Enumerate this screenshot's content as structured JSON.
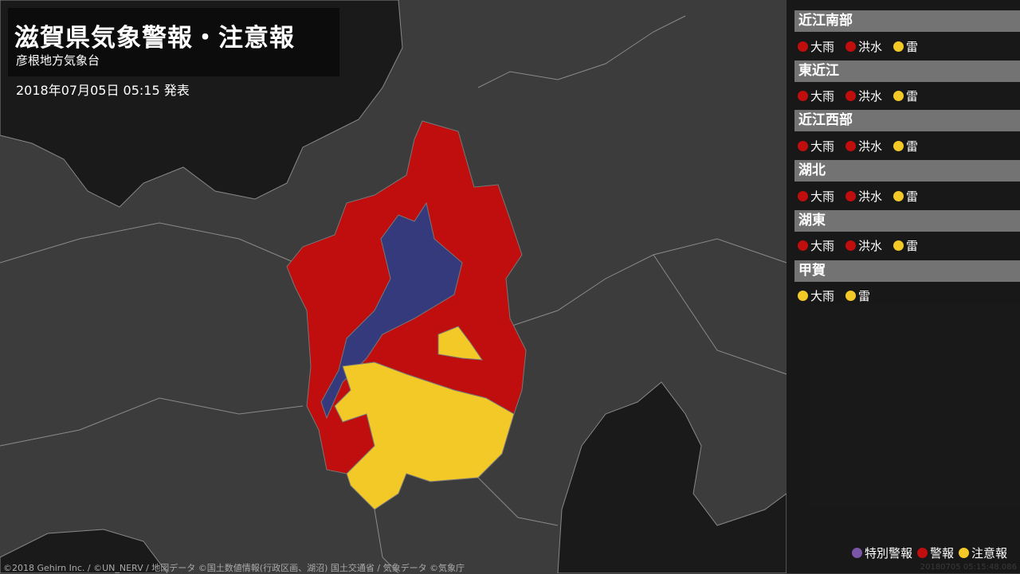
{
  "header": {
    "title": "滋賀県気象警報・注意報",
    "office": "彦根地方気象台",
    "issued": "2018年07月05日 05:15 発表"
  },
  "colors": {
    "special_warning": "#7b55a8",
    "warning": "#c00d0d",
    "advisory": "#f3c928",
    "lake": "#353a7c",
    "land": "#3c3c3c",
    "sea": "#1a1a1a"
  },
  "areas": [
    {
      "name": "近江南部",
      "items": [
        {
          "label": "大雨",
          "level": "warning"
        },
        {
          "label": "洪水",
          "level": "warning"
        },
        {
          "label": "雷",
          "level": "advisory"
        }
      ]
    },
    {
      "name": "東近江",
      "items": [
        {
          "label": "大雨",
          "level": "warning"
        },
        {
          "label": "洪水",
          "level": "warning"
        },
        {
          "label": "雷",
          "level": "advisory"
        }
      ]
    },
    {
      "name": "近江西部",
      "items": [
        {
          "label": "大雨",
          "level": "warning"
        },
        {
          "label": "洪水",
          "level": "warning"
        },
        {
          "label": "雷",
          "level": "advisory"
        }
      ]
    },
    {
      "name": "湖北",
      "items": [
        {
          "label": "大雨",
          "level": "warning"
        },
        {
          "label": "洪水",
          "level": "warning"
        },
        {
          "label": "雷",
          "level": "advisory"
        }
      ]
    },
    {
      "name": "湖東",
      "items": [
        {
          "label": "大雨",
          "level": "warning"
        },
        {
          "label": "洪水",
          "level": "warning"
        },
        {
          "label": "雷",
          "level": "advisory"
        }
      ]
    },
    {
      "name": "甲賀",
      "items": [
        {
          "label": "大雨",
          "level": "advisory"
        },
        {
          "label": "雷",
          "level": "advisory"
        }
      ]
    }
  ],
  "legend": [
    {
      "label": "特別警報",
      "level": "special_warning"
    },
    {
      "label": "警報",
      "level": "warning"
    },
    {
      "label": "注意報",
      "level": "advisory"
    }
  ],
  "credit": "©2018 Gehirn Inc. / ©UN_NERV / 地図データ ©国土数値情報(行政区画、湖沼) 国土交通省 / 気象データ ©気象庁",
  "stamp": "20180705 05:15:48.086"
}
